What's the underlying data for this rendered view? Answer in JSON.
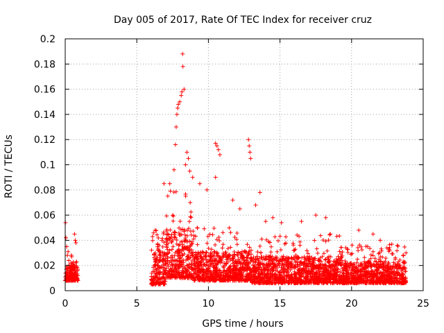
{
  "chart_data": {
    "type": "scatter",
    "title": "Day 005 of 2017, Rate Of TEC Index for receiver cruz",
    "xlabel": "GPS time / hours",
    "ylabel": "ROTI / TECUs",
    "xlim": [
      0,
      25
    ],
    "ylim": [
      0,
      0.2
    ],
    "xticks": [
      0,
      5,
      10,
      15,
      20,
      25
    ],
    "xtick_labels": [
      "0",
      "5",
      "10",
      "15",
      "20",
      "25"
    ],
    "yticks": [
      0,
      0.02,
      0.04,
      0.06,
      0.08,
      0.1,
      0.12,
      0.14,
      0.16,
      0.18,
      0.2
    ],
    "ytick_labels": [
      "0",
      "0.02",
      "0.04",
      "0.06",
      "0.08",
      "0.1",
      "0.12",
      "0.14",
      "0.16",
      "0.18",
      "0.2"
    ],
    "grid": true,
    "marker": "+",
    "color": "#ff0000",
    "series": [
      {
        "name": "ROTI",
        "points": [
          [
            0.02,
            0.054
          ],
          [
            0.05,
            0.042
          ],
          [
            0.1,
            0.035
          ],
          [
            0.15,
            0.028
          ],
          [
            0.2,
            0.031
          ],
          [
            0.25,
            0.024
          ],
          [
            0.3,
            0.019
          ],
          [
            0.35,
            0.016
          ],
          [
            0.4,
            0.022
          ],
          [
            0.45,
            0.027
          ],
          [
            0.5,
            0.021
          ],
          [
            0.55,
            0.018
          ],
          [
            0.6,
            0.02
          ],
          [
            0.65,
            0.045
          ],
          [
            0.7,
            0.04
          ],
          [
            0.75,
            0.038
          ],
          [
            0.8,
            0.023
          ],
          [
            6.9,
            0.085
          ],
          [
            7.3,
            0.085
          ],
          [
            7.6,
            0.096
          ],
          [
            7.7,
            0.116
          ],
          [
            7.75,
            0.13
          ],
          [
            7.8,
            0.14
          ],
          [
            7.85,
            0.145
          ],
          [
            7.9,
            0.148
          ],
          [
            8.0,
            0.15
          ],
          [
            8.1,
            0.155
          ],
          [
            8.15,
            0.158
          ],
          [
            8.2,
            0.188
          ],
          [
            8.22,
            0.178
          ],
          [
            8.3,
            0.16
          ],
          [
            8.4,
            0.1
          ],
          [
            8.5,
            0.11
          ],
          [
            8.6,
            0.105
          ],
          [
            8.7,
            0.095
          ],
          [
            8.9,
            0.09
          ],
          [
            9.4,
            0.085
          ],
          [
            9.9,
            0.08
          ],
          [
            10.5,
            0.117
          ],
          [
            10.6,
            0.115
          ],
          [
            10.7,
            0.112
          ],
          [
            10.8,
            0.108
          ],
          [
            10.5,
            0.09
          ],
          [
            11.7,
            0.072
          ],
          [
            12.2,
            0.065
          ],
          [
            12.8,
            0.12
          ],
          [
            12.85,
            0.115
          ],
          [
            12.9,
            0.11
          ],
          [
            12.95,
            0.105
          ],
          [
            13.3,
            0.068
          ],
          [
            13.6,
            0.078
          ],
          [
            14.0,
            0.055
          ],
          [
            14.5,
            0.058
          ],
          [
            15.1,
            0.054
          ],
          [
            16.5,
            0.055
          ],
          [
            17.5,
            0.06
          ],
          [
            18.2,
            0.058
          ],
          [
            19.7,
            0.033
          ],
          [
            20.5,
            0.048
          ],
          [
            21.5,
            0.045
          ],
          [
            22.0,
            0.04
          ],
          [
            23.2,
            0.036
          ],
          [
            23.8,
            0.03
          ]
        ],
        "clusters": [
          {
            "x_start": 0.0,
            "x_end": 0.9,
            "y_min": 0.008,
            "y_max": 0.03
          },
          {
            "x_start": 6.0,
            "x_end": 7.0,
            "y_min": 0.005,
            "y_max": 0.055
          },
          {
            "x_start": 7.0,
            "x_end": 9.0,
            "y_min": 0.01,
            "y_max": 0.08
          },
          {
            "x_start": 9.0,
            "x_end": 13.0,
            "y_min": 0.008,
            "y_max": 0.05
          },
          {
            "x_start": 13.0,
            "x_end": 19.5,
            "y_min": 0.006,
            "y_max": 0.045
          },
          {
            "x_start": 19.5,
            "x_end": 23.8,
            "y_min": 0.006,
            "y_max": 0.038
          }
        ]
      }
    ]
  }
}
